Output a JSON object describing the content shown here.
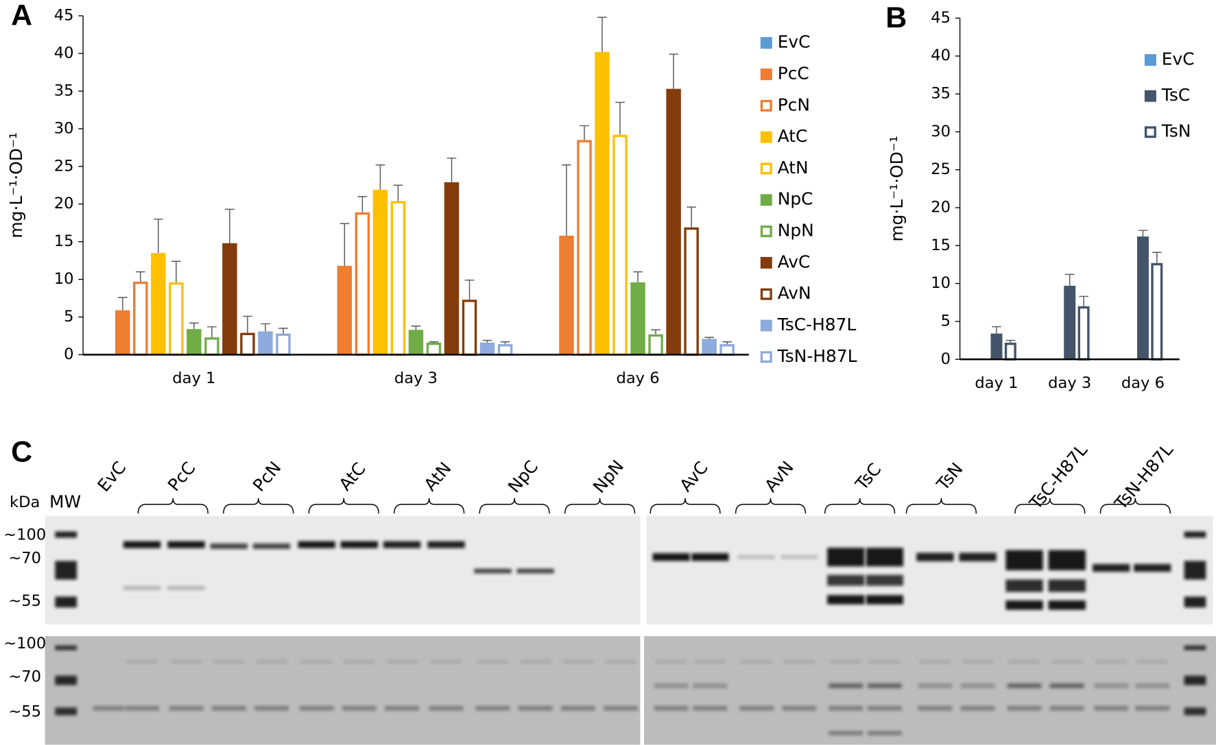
{
  "chart_data": [
    {
      "type": "bar",
      "panel_label": "A",
      "y_label": "mg·L⁻¹·OD⁻¹",
      "categories": [
        "day 1",
        "day 3",
        "day 6"
      ],
      "ylim": [
        0,
        45
      ],
      "yticks": [
        0,
        5,
        10,
        15,
        20,
        25,
        30,
        35,
        40,
        45
      ],
      "series": [
        {
          "name": "EvC",
          "color": "#5b9bd5",
          "style": "filled",
          "values": [
            0,
            0,
            0
          ],
          "errors": [
            0,
            0,
            0
          ]
        },
        {
          "name": "PcC",
          "color": "#ed7d31",
          "style": "filled",
          "values": [
            5.9,
            11.8,
            15.8
          ],
          "errors": [
            1.7,
            5.6,
            9.4
          ]
        },
        {
          "name": "PcN",
          "color": "#ed7d31",
          "style": "hollow",
          "values": [
            9.7,
            18.9,
            28.5
          ],
          "errors": [
            1.3,
            2.1,
            1.9
          ]
        },
        {
          "name": "AtC",
          "color": "#ffc000",
          "style": "filled",
          "values": [
            13.5,
            21.9,
            40.2
          ],
          "errors": [
            4.5,
            3.3,
            4.6
          ]
        },
        {
          "name": "AtN",
          "color": "#ffc000",
          "style": "hollow",
          "values": [
            9.6,
            20.4,
            29.2
          ],
          "errors": [
            2.8,
            2.1,
            4.3
          ]
        },
        {
          "name": "NpC",
          "color": "#70ad47",
          "style": "filled",
          "values": [
            3.4,
            3.3,
            9.6
          ],
          "errors": [
            0.8,
            0.5,
            1.4
          ]
        },
        {
          "name": "NpN",
          "color": "#70ad47",
          "style": "hollow",
          "values": [
            2.3,
            1.6,
            2.7
          ],
          "errors": [
            1.4,
            0.1,
            0.6
          ]
        },
        {
          "name": "AvC",
          "color": "#843c0c",
          "style": "filled",
          "values": [
            14.8,
            22.9,
            35.3
          ],
          "errors": [
            4.5,
            3.2,
            4.6
          ]
        },
        {
          "name": "AvN",
          "color": "#843c0c",
          "style": "hollow",
          "values": [
            2.9,
            7.3,
            16.9
          ],
          "errors": [
            2.2,
            2.6,
            2.7
          ]
        },
        {
          "name": "TsC-H87L",
          "color": "#8faadc",
          "style": "filled",
          "values": [
            3.1,
            1.6,
            2.1
          ],
          "errors": [
            1.0,
            0.3,
            0.2
          ]
        },
        {
          "name": "TsN-H87L",
          "color": "#8faadc",
          "style": "hollow",
          "values": [
            2.8,
            1.4,
            1.4
          ],
          "errors": [
            0.7,
            0.3,
            0.3
          ]
        }
      ]
    },
    {
      "type": "bar",
      "panel_label": "B",
      "y_label": "mg·L⁻¹·OD⁻¹",
      "categories": [
        "day 1",
        "day 3",
        "day 6"
      ],
      "ylim": [
        0,
        45
      ],
      "yticks": [
        0,
        5,
        10,
        15,
        20,
        25,
        30,
        35,
        40,
        45
      ],
      "series": [
        {
          "name": "EvC",
          "color": "#5b9bd5",
          "style": "filled",
          "values": [
            0,
            0,
            0
          ],
          "errors": [
            0,
            0,
            0
          ]
        },
        {
          "name": "TsC",
          "color": "#44546a",
          "style": "filled",
          "values": [
            3.4,
            9.7,
            16.2
          ],
          "errors": [
            0.9,
            1.5,
            0.8
          ]
        },
        {
          "name": "TsN",
          "color": "#44546a",
          "style": "hollow",
          "values": [
            2.2,
            7.0,
            12.7
          ],
          "errors": [
            0.3,
            1.3,
            1.4
          ]
        }
      ]
    }
  ],
  "gel": {
    "panel_label": "C",
    "unit": "kDa",
    "marker_label": "MW",
    "lanes": [
      "EvC",
      "PcC",
      "PcN",
      "AtC",
      "AtN",
      "NpC",
      "NpN",
      "AvC",
      "AvN",
      "TsC",
      "TsN",
      "TsC-H87L",
      "TsN-H87L"
    ],
    "mw_labels": [
      "~100",
      "~70",
      "~55"
    ]
  }
}
